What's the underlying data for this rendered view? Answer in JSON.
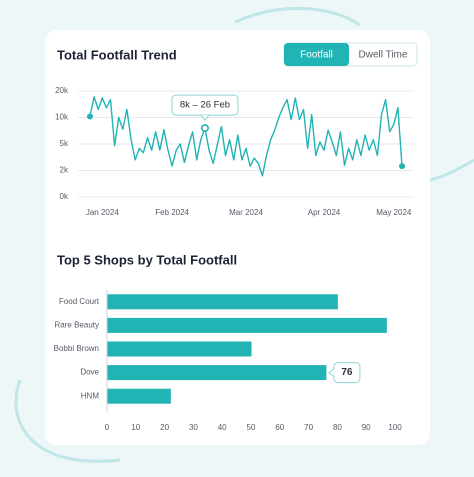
{
  "controls": [
    "Footfall",
    "Dwell Time"
  ],
  "chart_data": [
    {
      "type": "line",
      "title": "Total Footfall Trend",
      "categories": [
        null,
        null,
        null,
        "Jan 2024",
        null,
        null,
        null,
        null,
        null,
        null,
        null,
        null,
        null,
        null,
        null,
        null,
        null,
        null,
        null,
        null,
        "Feb 2024",
        null,
        null,
        null,
        null,
        null,
        null,
        null,
        null,
        null,
        null,
        null,
        null,
        null,
        null,
        null,
        null,
        null,
        "Mar 2024",
        null,
        null,
        null,
        null,
        null,
        null,
        null,
        null,
        null,
        null,
        null,
        null,
        null,
        null,
        null,
        null,
        null,
        null,
        "Apr 2024",
        null,
        null,
        null,
        null,
        null,
        null,
        null,
        null,
        null,
        null,
        null,
        null,
        null,
        null,
        null,
        null,
        "May 2024",
        null,
        null
      ],
      "values": [
        10400,
        17800,
        13000,
        17400,
        13700,
        16700,
        4800,
        10000,
        7800,
        13000,
        5800,
        3200,
        4500,
        4000,
        6200,
        4300,
        7300,
        4300,
        7700,
        4300,
        2500,
        4300,
        5000,
        2900,
        4800,
        7300,
        3200,
        5800,
        8000,
        4300,
        2800,
        4900,
        8300,
        3700,
        5800,
        3200,
        6700,
        3200,
        4500,
        2500,
        3400,
        2800,
        1600,
        3700,
        5800,
        7600,
        10000,
        13700,
        16700,
        9600,
        17400,
        9600,
        13000,
        4500,
        11100,
        3700,
        5400,
        4300,
        7600,
        5400,
        3700,
        7300,
        2600,
        4500,
        3200,
        5800,
        3700,
        6700,
        4300,
        5800,
        3700,
        11100,
        16700,
        7300,
        8700,
        13700,
        2500
      ],
      "color": "#22b3b5",
      "ylim": [
        0,
        20000
      ],
      "yticks": [
        {
          "value": 0,
          "label": "0k"
        },
        {
          "value": 2000,
          "label": "2k"
        },
        {
          "value": 5000,
          "label": "5k"
        },
        {
          "value": 10000,
          "label": "10k"
        },
        {
          "value": 20000,
          "label": "20k"
        }
      ],
      "grid": true,
      "annotation": {
        "text": "8k – 26 Feb",
        "value": 8000
      }
    },
    {
      "type": "bar",
      "orientation": "horizontal",
      "title": "Top 5 Shops by Total Footfall",
      "categories": [
        "Food Court",
        "Rare Beauty",
        "Bobbi Brown",
        "Dove",
        "HNM"
      ],
      "values": [
        80,
        97,
        50,
        76,
        22
      ],
      "color": "#22b3b5",
      "xlim": [
        0,
        100
      ],
      "xticks": [
        0,
        10,
        20,
        30,
        40,
        50,
        60,
        70,
        80,
        90,
        100
      ],
      "grid": false,
      "highlight": "Dove"
    }
  ]
}
